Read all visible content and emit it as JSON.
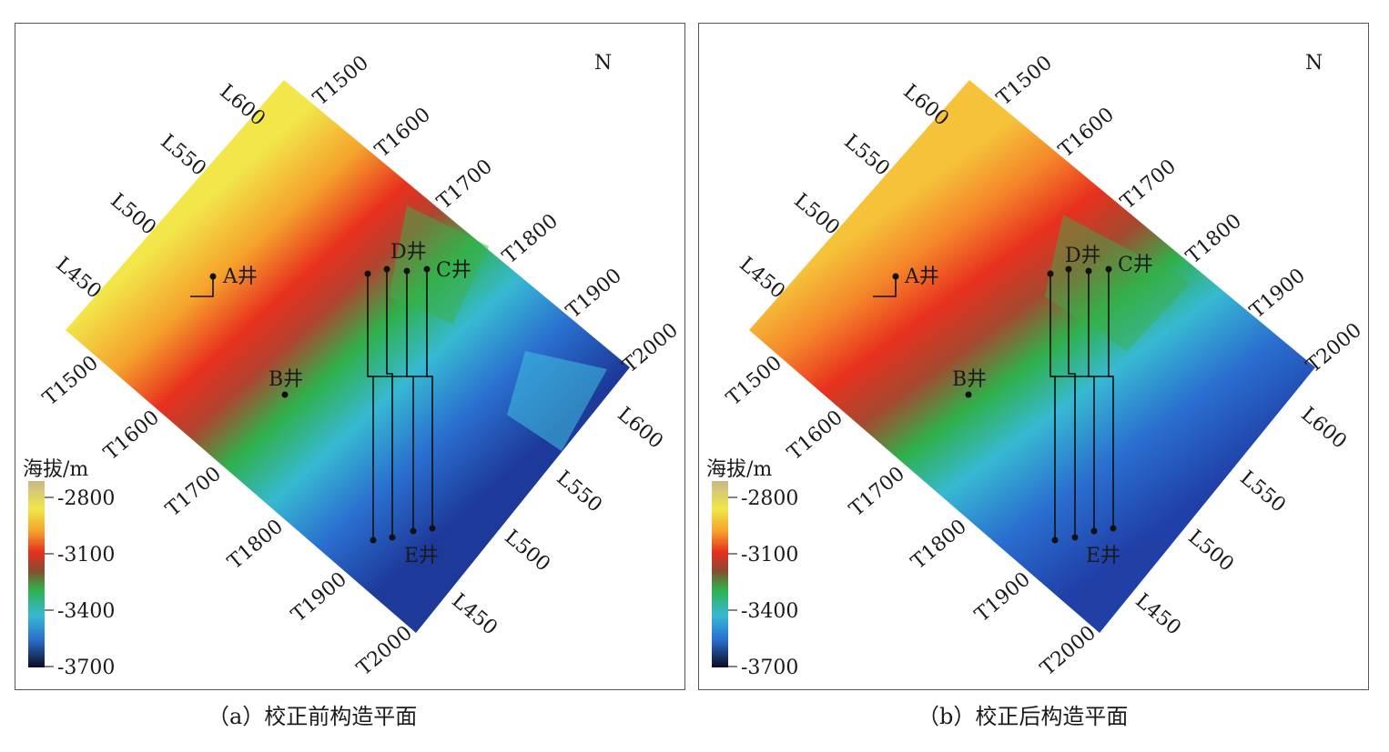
{
  "panels": [
    {
      "id": "a",
      "caption": "（a）校正前构造平面",
      "north": "N",
      "legend": {
        "title": "海拔/m",
        "ticks": [
          "-2800",
          "-3100",
          "-3400",
          "-3700"
        ]
      },
      "survey_labels": {
        "top_left": [
          "L600",
          "L550",
          "L500",
          "L450"
        ],
        "top_right": [
          "T1500",
          "T1600",
          "T1700",
          "T1800",
          "T1900",
          "T2000"
        ],
        "bottom_left": [
          "T1500",
          "T1600",
          "T1700",
          "T1800",
          "T1900",
          "T2000"
        ],
        "bottom_right": [
          "L600",
          "L550",
          "L500",
          "L450"
        ]
      },
      "wells": [
        "A井",
        "B井",
        "C井",
        "D井",
        "E井"
      ]
    },
    {
      "id": "b",
      "caption": "（b）校正后构造平面",
      "north": "N",
      "legend": {
        "title": "海拔/m",
        "ticks": [
          "-2800",
          "-3100",
          "-3400",
          "-3700"
        ]
      },
      "survey_labels": {
        "top_left": [
          "L600",
          "L550",
          "L500",
          "L450"
        ],
        "top_right": [
          "T1500",
          "T1600",
          "T1700",
          "T1800",
          "T1900",
          "T2000"
        ],
        "bottom_left": [
          "T1500",
          "T1600",
          "T1700",
          "T1800",
          "T1900",
          "T2000"
        ],
        "bottom_right": [
          "L600",
          "L550",
          "L500",
          "L450"
        ]
      },
      "wells": [
        "A井",
        "B井",
        "C井",
        "D井",
        "E井"
      ]
    }
  ],
  "colors": {
    "ramp": [
      "#e8dfa8",
      "#f2e64a",
      "#f5a22c",
      "#e8301e",
      "#b03a2a",
      "#2fb04a",
      "#37b9d2",
      "#2a6fd0",
      "#1d2f8f",
      "#0c0c22"
    ]
  }
}
